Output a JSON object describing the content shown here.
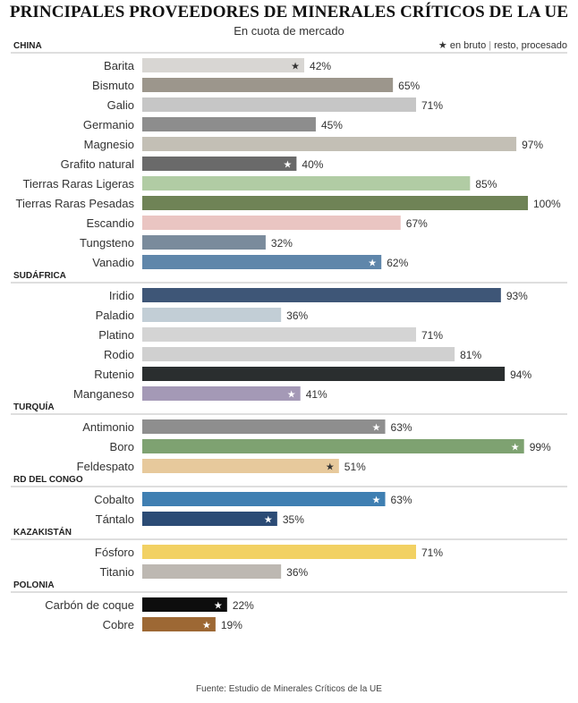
{
  "header": {
    "title": "PRINCIPALES PROVEEDORES DE MINERALES CRÍTICOS DE LA UE",
    "subtitle": "En cuota de mercado"
  },
  "legend": {
    "star_symbol": "★",
    "bruto": "en bruto",
    "procesado": "resto, procesado"
  },
  "footer": {
    "source": "Fuente: Estudio de Minerales Críticos de la UE"
  },
  "chart_data": {
    "type": "bar",
    "orientation": "horizontal",
    "unit": "%",
    "xlim": [
      0,
      100
    ],
    "grid": false,
    "groups": [
      {
        "country": "CHINA",
        "items": [
          {
            "label": "Barita",
            "value": 42,
            "raw": true,
            "color": "#d8d6d3"
          },
          {
            "label": "Bismuto",
            "value": 65,
            "raw": false,
            "color": "#9c968c"
          },
          {
            "label": "Galio",
            "value": 71,
            "raw": false,
            "color": "#c6c6c6"
          },
          {
            "label": "Germanio",
            "value": 45,
            "raw": false,
            "color": "#8d8d8d"
          },
          {
            "label": "Magnesio",
            "value": 97,
            "raw": false,
            "color": "#c3bfb5"
          },
          {
            "label": "Grafito natural",
            "value": 40,
            "raw": true,
            "color": "#6a6a6a"
          },
          {
            "label": "Tierras Raras Ligeras",
            "value": 85,
            "raw": false,
            "color": "#b1cca4"
          },
          {
            "label": "Tierras Raras Pesadas",
            "value": 100,
            "raw": false,
            "color": "#6f8356"
          },
          {
            "label": "Escandio",
            "value": 67,
            "raw": false,
            "color": "#eac5c2"
          },
          {
            "label": "Tungsteno",
            "value": 32,
            "raw": false,
            "color": "#7a8b9c"
          },
          {
            "label": "Vanadio",
            "value": 62,
            "raw": true,
            "color": "#5f86aa"
          }
        ]
      },
      {
        "country": "SUDÁFRICA",
        "items": [
          {
            "label": "Iridio",
            "value": 93,
            "raw": false,
            "color": "#3e5677"
          },
          {
            "label": "Paladio",
            "value": 36,
            "raw": false,
            "color": "#c2ced6"
          },
          {
            "label": "Platino",
            "value": 71,
            "raw": false,
            "color": "#d4d4d4"
          },
          {
            "label": "Rodio",
            "value": 81,
            "raw": false,
            "color": "#d0d0d0"
          },
          {
            "label": "Rutenio",
            "value": 94,
            "raw": false,
            "color": "#2a2e2f"
          },
          {
            "label": "Manganeso",
            "value": 41,
            "raw": true,
            "color": "#a499b6"
          }
        ]
      },
      {
        "country": "TURQUÍA",
        "items": [
          {
            "label": "Antimonio",
            "value": 63,
            "raw": true,
            "color": "#8e8e8e"
          },
          {
            "label": "Boro",
            "value": 99,
            "raw": true,
            "color": "#7ea271"
          },
          {
            "label": "Feldespato",
            "value": 51,
            "raw": true,
            "color": "#e7c99c"
          }
        ]
      },
      {
        "country": "RD DEL CONGO",
        "items": [
          {
            "label": "Cobalto",
            "value": 63,
            "raw": true,
            "color": "#3f7fb2"
          },
          {
            "label": "Tántalo",
            "value": 35,
            "raw": true,
            "color": "#2b4b75"
          }
        ]
      },
      {
        "country": "KAZAKISTÁN",
        "items": [
          {
            "label": "Fósforo",
            "value": 71,
            "raw": false,
            "color": "#f2d163"
          },
          {
            "label": "Titanio",
            "value": 36,
            "raw": false,
            "color": "#bdb8b2"
          }
        ]
      },
      {
        "country": "POLONIA",
        "items": [
          {
            "label": "Carbón de coque",
            "value": 22,
            "raw": true,
            "color": "#0d0d0d"
          },
          {
            "label": "Cobre",
            "value": 19,
            "raw": true,
            "color": "#9d6834"
          }
        ]
      }
    ]
  }
}
